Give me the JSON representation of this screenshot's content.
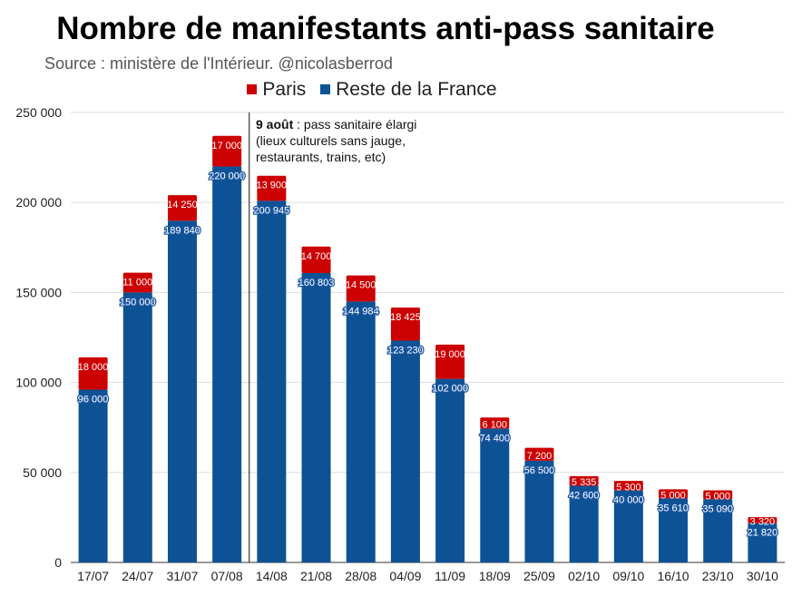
{
  "chart_data": {
    "type": "bar",
    "stacked": true,
    "title": "Nombre de manifestants anti-pass sanitaire",
    "subtitle": "Source : ministère de l'Intérieur. @nicolasberrod",
    "categories": [
      "17/07",
      "24/07",
      "31/07",
      "07/08",
      "14/08",
      "21/08",
      "28/08",
      "04/09",
      "11/09",
      "18/09",
      "25/09",
      "02/10",
      "09/10",
      "16/10",
      "23/10",
      "30/10"
    ],
    "series": [
      {
        "name": "Reste de la France",
        "color": "#0d5295",
        "values": [
          96000,
          150000,
          189840,
          220000,
          200945,
          160803,
          144984,
          123230,
          102000,
          74400,
          56500,
          42600,
          40000,
          35610,
          35090,
          21820
        ],
        "labels": [
          "96 000",
          "150 000",
          "189 840",
          "220 000",
          "200 945",
          "160 803",
          "144 984",
          "123 230",
          "102 000",
          "74 400",
          "56 500",
          "42 600",
          "40 000",
          "35 610",
          "35 090",
          "21 820"
        ]
      },
      {
        "name": "Paris",
        "color": "#cc0000",
        "values": [
          18000,
          11000,
          14250,
          17000,
          13900,
          14700,
          14500,
          18425,
          19000,
          6100,
          7200,
          5335,
          5300,
          5000,
          5000,
          3320
        ],
        "labels": [
          "18 000",
          "11 000",
          "14 250",
          "17 000",
          "13 900",
          "14 700",
          "14 500",
          "18 425",
          "19 000",
          "6 100",
          "7 200",
          "5 335",
          "5 300",
          "5 000",
          "5 000",
          "3 320"
        ]
      }
    ],
    "ylim": [
      0,
      250000
    ],
    "yticks": [
      0,
      50000,
      100000,
      150000,
      200000,
      250000
    ],
    "ytick_labels": [
      "0",
      "50 000",
      "100 000",
      "150 000",
      "200 000",
      "250 000"
    ],
    "legend_position": "top",
    "grid": true,
    "annotation": {
      "bold": "9 août",
      "text": " : pass sanitaire élargi (lieux culturels sans jauge, restaurants, trains, etc)",
      "after_category": "07/08"
    }
  }
}
